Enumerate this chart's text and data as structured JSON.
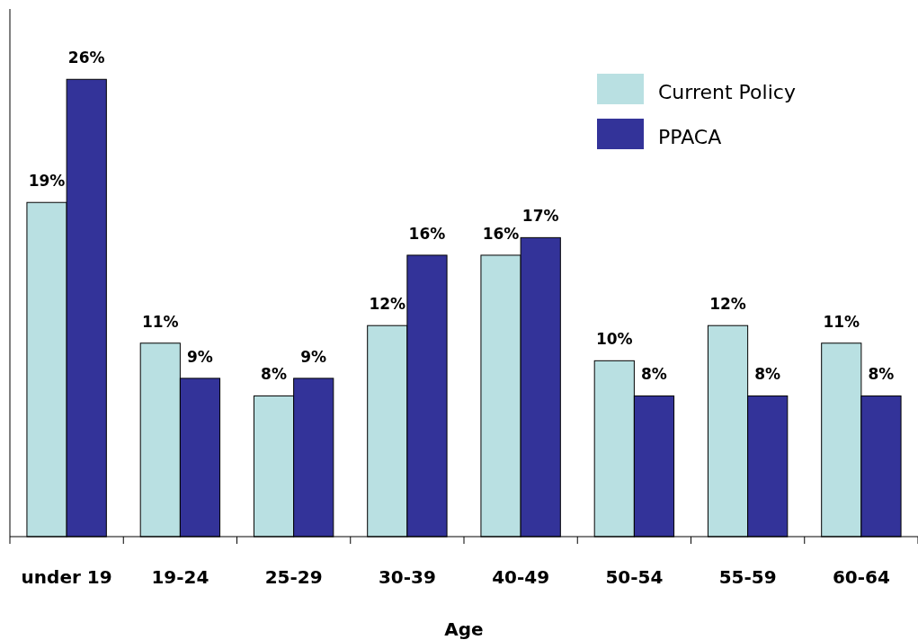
{
  "chart_data": {
    "type": "bar",
    "xlabel": "Age",
    "categories": [
      "under 19",
      "19-24",
      "25-29",
      "30-39",
      "40-49",
      "50-54",
      "55-59",
      "60-64"
    ],
    "series": [
      {
        "name": "Current Policy",
        "color": "#b9e0e2",
        "values": [
          19,
          11,
          8,
          12,
          16,
          10,
          12,
          11
        ],
        "value_labels": [
          "19%",
          "11%",
          "8%",
          "12%",
          "16%",
          "10%",
          "12%",
          "11%"
        ]
      },
      {
        "name": "PPACA",
        "color": "#333399",
        "values": [
          26,
          9,
          9,
          16,
          17,
          8,
          8,
          8
        ],
        "value_labels": [
          "26%",
          "9%",
          "9%",
          "16%",
          "17%",
          "8%",
          "8%",
          "8%"
        ]
      }
    ],
    "ylim": [
      0,
      30
    ],
    "legend": "top right",
    "grid": false
  }
}
